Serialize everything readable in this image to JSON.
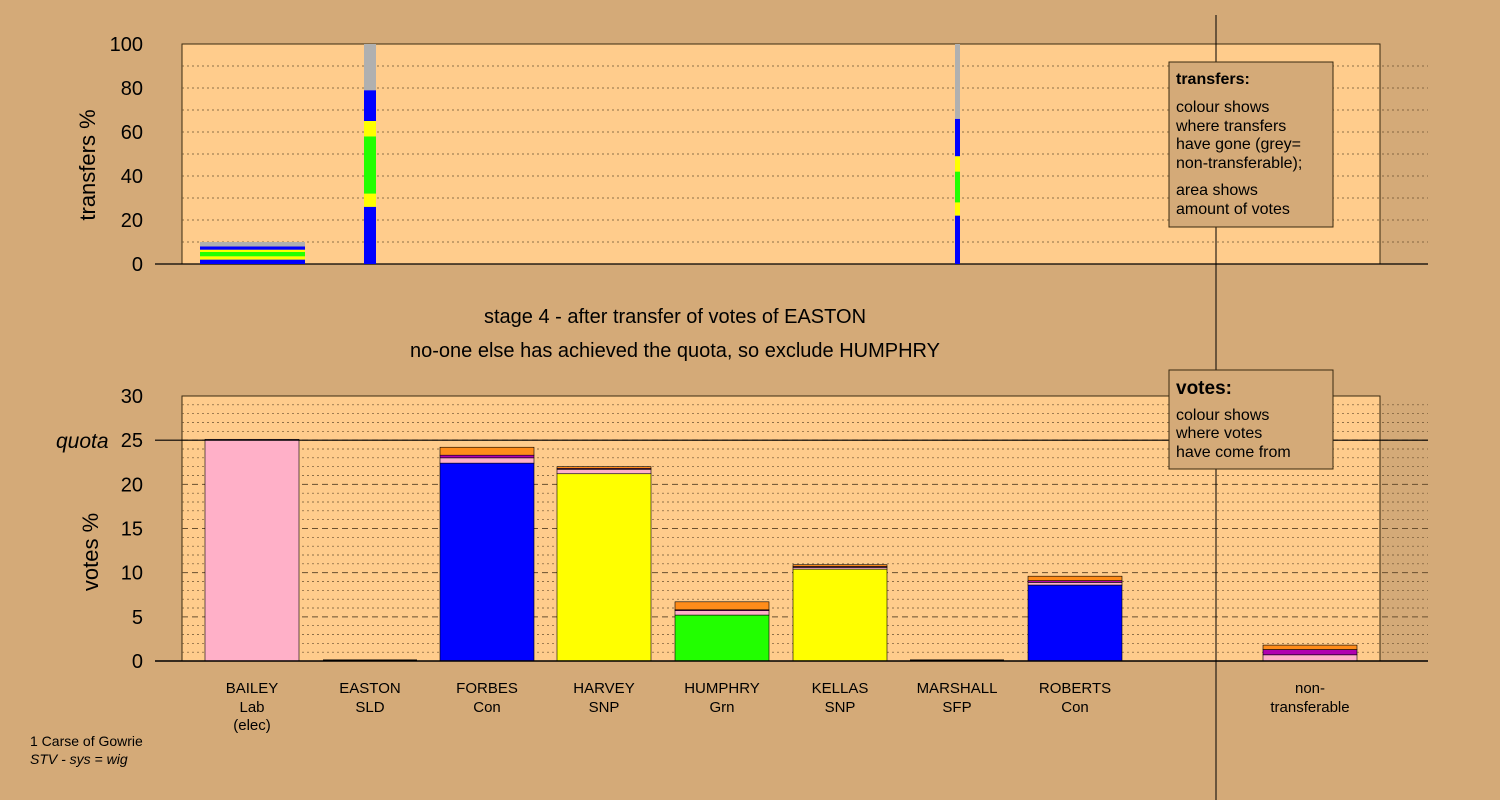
{
  "stage_title": "stage 4 - after transfer of votes of EASTON",
  "stage_subtitle": "no-one else has achieved the quota, so exclude HUMPHRY",
  "footer": {
    "line1": "1 Carse of Gowrie",
    "line2": "STV - sys = wig"
  },
  "colors": {
    "background": "#d4aa78",
    "plot_bg": "#ffcc8c",
    "Lab": "#ffb0c8",
    "Con": "#0000ff",
    "SNP": "#ffff00",
    "Grn": "#22ff00",
    "SLD": "#ff8c1a",
    "SFP": "#b000b0",
    "nontransferable": "#b0b0b0"
  },
  "transfers_legend": {
    "title": "transfers:",
    "lines": [
      "colour shows",
      "where transfers",
      "have gone (grey=",
      "non-transferable);",
      "area shows",
      "amount of votes"
    ]
  },
  "votes_legend": {
    "title": "votes:",
    "lines": [
      "colour shows",
      "where votes",
      "have come from"
    ]
  },
  "chart_data": [
    {
      "type": "bar",
      "stacked": true,
      "ylabel": "transfers %",
      "ylim": [
        0,
        100
      ],
      "yticks": [
        0,
        20,
        40,
        60,
        80,
        100
      ],
      "grid": true,
      "legend_position": "top-right",
      "columns": [
        {
          "label": "BAILEY",
          "wide": true,
          "segments": [
            {
              "from": 0,
              "to": 2,
              "party": "Con"
            },
            {
              "from": 2,
              "to": 3.5,
              "party": "SNP"
            },
            {
              "from": 3.5,
              "to": 5.5,
              "party": "Grn"
            },
            {
              "from": 5.5,
              "to": 6.5,
              "party": "SNP"
            },
            {
              "from": 6.5,
              "to": 8,
              "party": "Con"
            },
            {
              "from": 8,
              "to": 10,
              "party": "nontransferable"
            }
          ]
        },
        {
          "label": "EASTON",
          "wide": false,
          "segments": [
            {
              "from": 0,
              "to": 26,
              "party": "Con"
            },
            {
              "from": 26,
              "to": 32,
              "party": "SNP"
            },
            {
              "from": 32,
              "to": 58,
              "party": "Grn"
            },
            {
              "from": 58,
              "to": 65,
              "party": "SNP"
            },
            {
              "from": 65,
              "to": 79,
              "party": "Con"
            },
            {
              "from": 79,
              "to": 100,
              "party": "nontransferable"
            }
          ]
        },
        {
          "label": "MARSHALL",
          "wide": false,
          "segments": [
            {
              "from": 0,
              "to": 22,
              "party": "Con"
            },
            {
              "from": 22,
              "to": 28,
              "party": "SNP"
            },
            {
              "from": 28,
              "to": 42,
              "party": "Grn"
            },
            {
              "from": 42,
              "to": 49,
              "party": "SNP"
            },
            {
              "from": 49,
              "to": 66,
              "party": "Con"
            },
            {
              "from": 66,
              "to": 100,
              "party": "nontransferable"
            }
          ]
        }
      ]
    },
    {
      "type": "bar",
      "stacked": true,
      "ylabel": "votes %",
      "ylim": [
        0,
        30
      ],
      "yticks": [
        0,
        5,
        10,
        15,
        20,
        25,
        30
      ],
      "quota": 25,
      "quota_label": "quota",
      "grid": true,
      "legend_position": "top-right",
      "candidates": [
        {
          "name": "BAILEY",
          "party": "Lab",
          "note": "(elec)",
          "segments": [
            {
              "party": "Lab",
              "value": 25.1
            }
          ]
        },
        {
          "name": "EASTON",
          "party": "SLD",
          "note": "",
          "segments": []
        },
        {
          "name": "FORBES",
          "party": "Con",
          "note": "",
          "segments": [
            {
              "party": "Con",
              "value": 22.4
            },
            {
              "party": "Lab",
              "value": 0.6
            },
            {
              "party": "SFP",
              "value": 0.3
            },
            {
              "party": "SLD",
              "value": 0.9
            }
          ]
        },
        {
          "name": "HARVEY",
          "party": "SNP",
          "note": "",
          "segments": [
            {
              "party": "SNP",
              "value": 21.2
            },
            {
              "party": "Lab",
              "value": 0.5
            },
            {
              "party": "SFP",
              "value": 0.1
            },
            {
              "party": "SLD",
              "value": 0.2
            }
          ]
        },
        {
          "name": "HUMPHRY",
          "party": "Grn",
          "note": "",
          "segments": [
            {
              "party": "Grn",
              "value": 5.2
            },
            {
              "party": "Lab",
              "value": 0.5
            },
            {
              "party": "SFP",
              "value": 0.1
            },
            {
              "party": "SLD",
              "value": 0.9
            }
          ]
        },
        {
          "name": "KELLAS",
          "party": "SNP",
          "note": "",
          "segments": [
            {
              "party": "SNP",
              "value": 10.4
            },
            {
              "party": "Lab",
              "value": 0.2
            },
            {
              "party": "SFP",
              "value": 0.1
            },
            {
              "party": "SLD",
              "value": 0.2
            }
          ]
        },
        {
          "name": "MARSHALL",
          "party": "SFP",
          "note": "",
          "segments": []
        },
        {
          "name": "ROBERTS",
          "party": "Con",
          "note": "",
          "segments": [
            {
              "party": "Con",
              "value": 8.6
            },
            {
              "party": "Lab",
              "value": 0.3
            },
            {
              "party": "SFP",
              "value": 0.2
            },
            {
              "party": "SLD",
              "value": 0.5
            }
          ]
        },
        {
          "name": "non-",
          "party": "transferable",
          "note": "",
          "nontransferable": true,
          "segments": [
            {
              "party": "Lab",
              "value": 0.7
            },
            {
              "party": "SFP",
              "value": 0.6
            },
            {
              "party": "SLD",
              "value": 0.5
            }
          ]
        }
      ]
    }
  ]
}
